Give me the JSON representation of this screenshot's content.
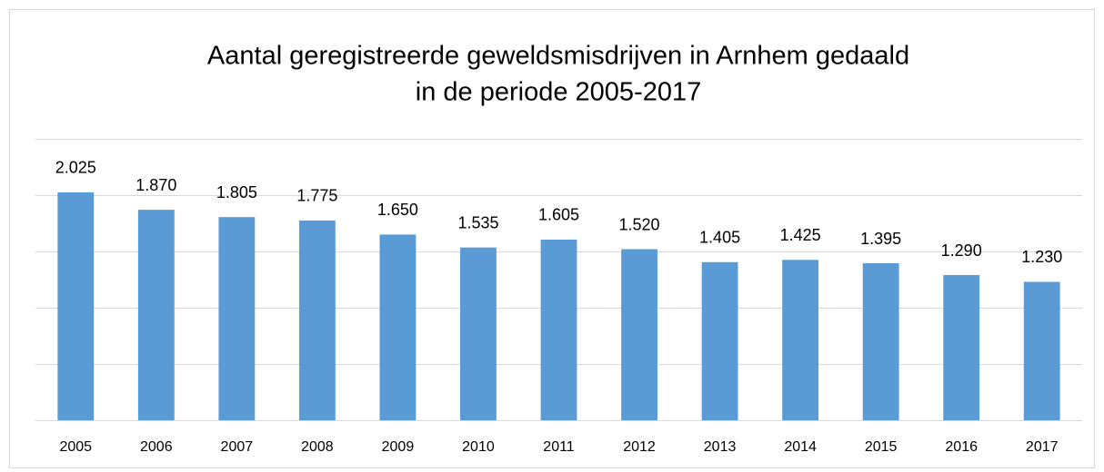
{
  "chart_data": {
    "type": "bar",
    "title": [
      "Aantal geregistreerde geweldsmisdrijven in Arnhem  gedaald",
      "in de periode 2005-2017"
    ],
    "categories": [
      "2005",
      "2006",
      "2007",
      "2008",
      "2009",
      "2010",
      "2011",
      "2012",
      "2013",
      "2014",
      "2015",
      "2016",
      "2017"
    ],
    "values": [
      2025,
      1870,
      1805,
      1775,
      1650,
      1535,
      1605,
      1520,
      1405,
      1425,
      1395,
      1290,
      1230
    ],
    "value_labels": [
      "2.025",
      "1.870",
      "1.805",
      "1.775",
      "1.650",
      "1.535",
      "1.605",
      "1.520",
      "1.405",
      "1.425",
      "1.395",
      "1.290",
      "1.230"
    ],
    "color": "#5b9bd5",
    "ylim": [
      0,
      2500
    ],
    "yticks": [
      0,
      500,
      1000,
      1500,
      2000,
      2500
    ],
    "grid": true
  }
}
